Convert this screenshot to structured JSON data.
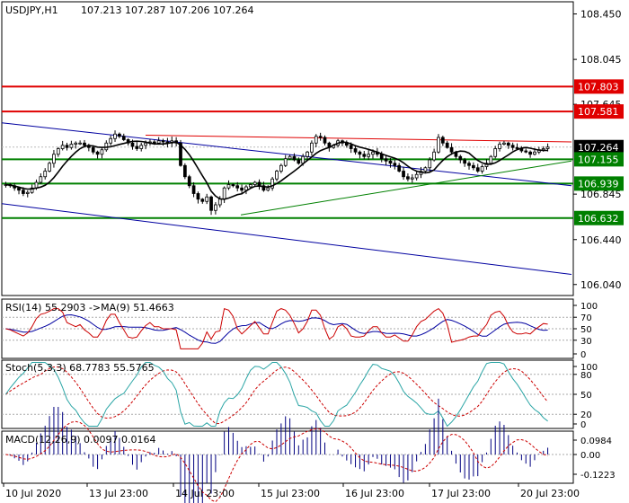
{
  "header": {
    "symbol": "USDJPY,H1",
    "ohlc": "107.213 107.287 107.206 107.264"
  },
  "price_axis": {
    "ticks": [
      "108.450",
      "108.045",
      "107.645",
      "107.264",
      "106.845",
      "106.440",
      "106.040"
    ],
    "tags": [
      {
        "label": "107.803",
        "value": 107.803,
        "color": "#e00000"
      },
      {
        "label": "107.581",
        "value": 107.581,
        "color": "#e00000"
      },
      {
        "label": "107.264",
        "value": 107.264,
        "color": "#000000"
      },
      {
        "label": "107.155",
        "value": 107.155,
        "color": "#008000"
      },
      {
        "label": "106.939",
        "value": 106.939,
        "color": "#008000"
      },
      {
        "label": "106.632",
        "value": 106.632,
        "color": "#008000"
      }
    ]
  },
  "rsi": {
    "label": "RSI(14) 55.2903  ->MA(9) 51.4663",
    "ticks": [
      "100",
      "70",
      "50",
      "30",
      "0"
    ]
  },
  "stoch": {
    "label": "Stoch(5,3,3) 68.7783 55.5765",
    "ticks": [
      "100",
      "80",
      "50",
      "20",
      "0"
    ]
  },
  "macd": {
    "label": "MACD(12,26,9) 0.0097 0.0164",
    "ticks": [
      "0.0984",
      "0.00",
      "-0.1223"
    ]
  },
  "time_axis": {
    "labels": [
      "10 Jul 2020",
      "13 Jul 23:00",
      "14 Jul 23:00",
      "15 Jul 23:00",
      "16 Jul 23:00",
      "17 Jul 23:00",
      "20 Jul 23:00"
    ]
  },
  "colors": {
    "bull": "#000000",
    "bear": "#000000",
    "ma": "#000000",
    "resistance": "#e00000",
    "support": "#008000",
    "channel": "#0000a0",
    "rsi": "#cc0000",
    "rsi_ma": "#0000a0",
    "stoch_main": "#2aa5a5",
    "stoch_signal": "#cc0000",
    "macd_hist": "#000080",
    "macd_signal": "#cc0000"
  },
  "chart_data": {
    "type": "candlestick",
    "timeframe": "H1",
    "horizontal_levels": [
      107.803,
      107.581,
      107.155,
      106.939,
      106.632
    ],
    "last_price": 107.264,
    "yrange": [
      105.95,
      108.55
    ],
    "close_series": [
      106.93,
      106.92,
      106.9,
      106.88,
      106.85,
      106.86,
      106.9,
      106.95,
      107.0,
      107.05,
      107.12,
      107.2,
      107.25,
      107.28,
      107.26,
      107.29,
      107.3,
      107.3,
      107.28,
      107.26,
      107.22,
      107.2,
      107.24,
      107.3,
      107.34,
      107.38,
      107.36,
      107.33,
      107.3,
      107.27,
      107.25,
      107.28,
      107.3,
      107.31,
      107.3,
      107.32,
      107.31,
      107.3,
      107.32,
      107.3,
      107.1,
      107.0,
      106.92,
      106.85,
      106.8,
      106.78,
      106.82,
      106.7,
      106.75,
      106.8,
      106.9,
      106.93,
      106.92,
      106.9,
      106.88,
      106.91,
      106.93,
      106.95,
      106.92,
      106.88,
      106.9,
      106.98,
      107.05,
      107.1,
      107.16,
      107.18,
      107.15,
      107.12,
      107.18,
      107.22,
      107.3,
      107.36,
      107.35,
      107.3,
      107.26,
      107.28,
      107.32,
      107.3,
      107.28,
      107.25,
      107.22,
      107.2,
      107.18,
      107.2,
      107.22,
      107.2,
      107.16,
      107.14,
      107.12,
      107.1,
      107.05,
      107.0,
      106.98,
      106.99,
      107.02,
      107.05,
      107.08,
      107.15,
      107.22,
      107.35,
      107.3,
      107.26,
      107.22,
      107.18,
      107.15,
      107.12,
      107.1,
      107.08,
      107.05,
      107.09,
      107.12,
      107.18,
      107.25,
      107.29,
      107.3,
      107.28,
      107.26,
      107.25,
      107.23,
      107.22,
      107.2,
      107.22,
      107.24,
      107.25,
      107.264
    ]
  }
}
